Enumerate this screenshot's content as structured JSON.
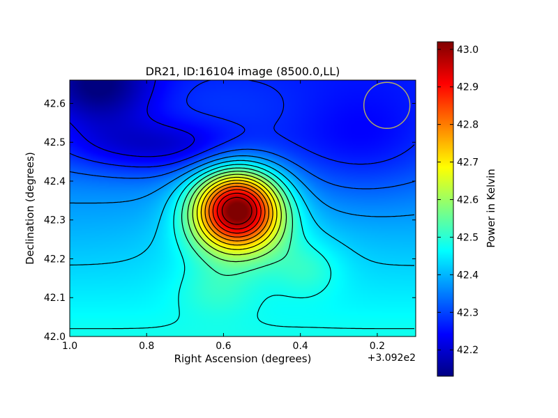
{
  "chart_data": {
    "type": "heatmap",
    "title": "DR21, ID:16104 image (8500.0,LL)",
    "xlabel": "Right Ascension (degrees)",
    "ylabel": "Declination (degrees)",
    "x_offset_label": "+3.092e2",
    "xlim": [
      1.0,
      0.1
    ],
    "ylim": [
      42.0,
      42.66
    ],
    "x_ticks": [
      "1.0",
      "0.8",
      "0.6",
      "0.4",
      "0.2"
    ],
    "x_tick_values": [
      1.0,
      0.8,
      0.6,
      0.4,
      0.2
    ],
    "y_ticks": [
      "42.0",
      "42.1",
      "42.2",
      "42.3",
      "42.4",
      "42.5",
      "42.6"
    ],
    "y_tick_values": [
      42.0,
      42.1,
      42.2,
      42.3,
      42.4,
      42.5,
      42.6
    ],
    "colorbar": {
      "label": "Power in Kelvin",
      "range": [
        42.13,
        43.02
      ],
      "ticks": [
        "42.2",
        "42.3",
        "42.4",
        "42.5",
        "42.6",
        "42.7",
        "42.8",
        "42.9",
        "43.0"
      ],
      "tick_values": [
        42.2,
        42.3,
        42.4,
        42.5,
        42.6,
        42.7,
        42.8,
        42.9,
        43.0
      ]
    },
    "peak": {
      "ra": 0.565,
      "dec": 42.33,
      "value": 43.02
    },
    "beam": {
      "ra": 0.175,
      "dec": 42.595,
      "color": "#b6b060"
    },
    "colormap": "jet"
  }
}
